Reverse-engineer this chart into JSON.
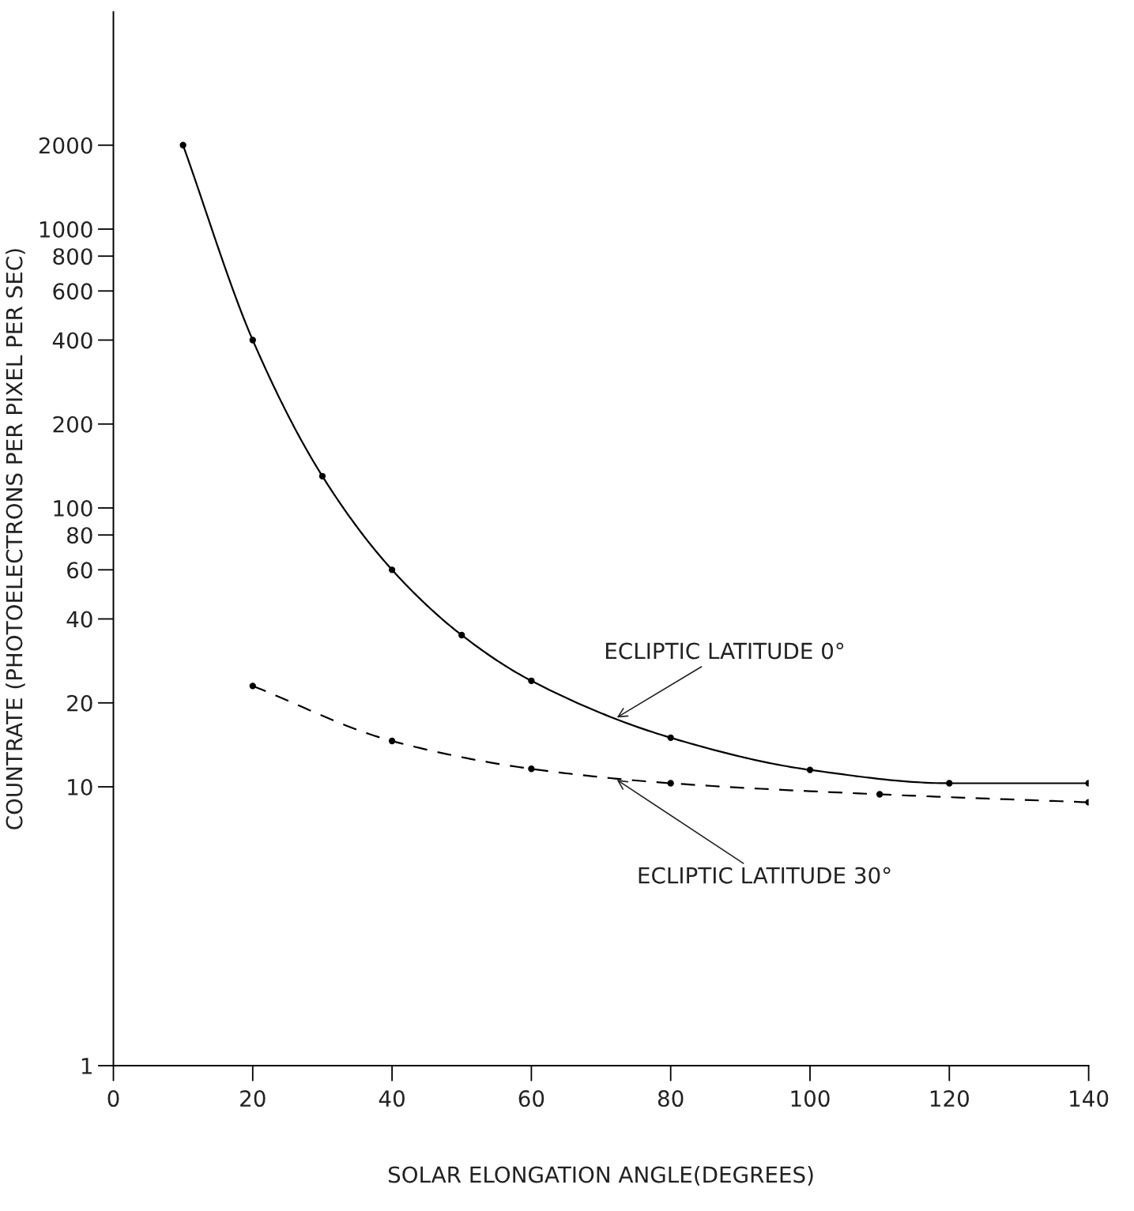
{
  "chart_data": {
    "type": "line",
    "xlabel": "SOLAR ELONGATION ANGLE(DEGREES)",
    "ylabel": "COUNTRATE (PHOTOELECTRONS PER PIXEL PER SEC)",
    "log": "y",
    "grid": false,
    "legend": false,
    "marker": "circle",
    "xlim": [
      0,
      140
    ],
    "xticks": [
      0,
      20,
      40,
      60,
      80,
      100,
      120,
      140
    ],
    "ylim": [
      1,
      6000
    ],
    "yticks": [
      1,
      10,
      20,
      40,
      60,
      80,
      100,
      200,
      400,
      600,
      800,
      1000,
      2000
    ],
    "series": [
      {
        "name": "ECLIPTIC LATITUDE 0°",
        "color": "#000000",
        "line_style": "solid",
        "x": [
          10,
          20,
          30,
          40,
          50,
          60,
          80,
          100,
          120,
          140
        ],
        "values": [
          2000,
          400,
          130,
          60,
          35,
          24,
          15,
          11.5,
          10.3,
          10.3
        ]
      },
      {
        "name": "ECLIPTIC LATITUDE 30°",
        "color": "#000000",
        "line_style": "dashed",
        "x": [
          20,
          40,
          60,
          80,
          110,
          140
        ],
        "values": [
          23,
          14.6,
          11.6,
          10.3,
          9.4,
          8.8
        ]
      }
    ]
  }
}
